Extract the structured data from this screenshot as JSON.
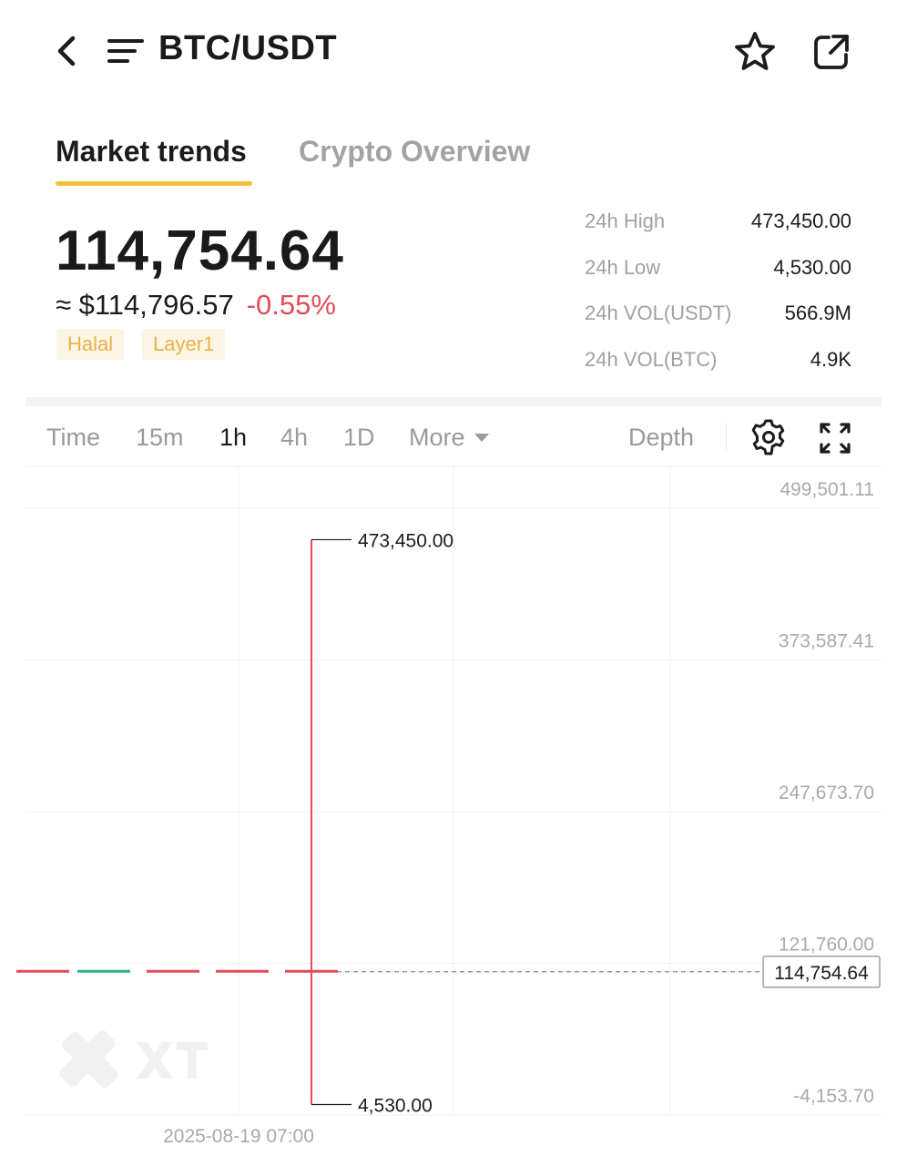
{
  "header": {
    "title": "BTC/USDT",
    "icons": {
      "back": "back-chevron-icon",
      "menu": "menu-lines-icon",
      "favorite": "star-icon",
      "share": "share-icon"
    }
  },
  "tabs": [
    {
      "label": "Market trends",
      "active": true
    },
    {
      "label": "Crypto Overview",
      "active": false
    }
  ],
  "ticker": {
    "last_price": "114,754.64",
    "fiat_price": "≈ $114,796.57",
    "change_pct": "-0.55%",
    "tags": [
      "Halal",
      "Layer1"
    ]
  },
  "stats": [
    {
      "label": "24h High",
      "value": "473,450.00"
    },
    {
      "label": "24h Low",
      "value": "4,530.00"
    },
    {
      "label": "24h VOL(USDT)",
      "value": "566.9M"
    },
    {
      "label": "24h VOL(BTC)",
      "value": "4.9K"
    }
  ],
  "toolbar": {
    "timeframes": [
      {
        "label": "Time",
        "active": false
      },
      {
        "label": "15m",
        "active": false
      },
      {
        "label": "1h",
        "active": true
      },
      {
        "label": "4h",
        "active": false
      },
      {
        "label": "1D",
        "active": false
      }
    ],
    "more_label": "More",
    "depth_label": "Depth",
    "icons": {
      "settings": "gear-icon",
      "fullscreen": "fullscreen-icon"
    }
  },
  "colors": {
    "accent": "#f5bf35",
    "down": "#e04c58",
    "up": "#2bb38a",
    "tag_text": "#e8b34a",
    "tag_bg": "#fdf5e4"
  },
  "chart_data": {
    "type": "candlestick",
    "y_tick_labels": [
      "499,501.11",
      "373,587.41",
      "247,673.70",
      "121,760.00",
      "-4,153.70"
    ],
    "y_ticks": [
      499501.11,
      373587.41,
      247673.7,
      121760.0,
      -4153.7
    ],
    "current_price_label": "114,754.64",
    "current_price": 114754.64,
    "high_label": "473,450.00",
    "high": 473450.0,
    "low_label": "4,530.00",
    "low": 4530.0,
    "x_label": "2025-08-19 07:00",
    "candles": [
      {
        "open": 114900,
        "close": 114754.64,
        "high": 114900,
        "low": 114754.64,
        "direction": "down"
      },
      {
        "open": 114754.64,
        "close": 114900,
        "high": 114900,
        "low": 114754.64,
        "direction": "up"
      },
      {
        "open": 114900,
        "close": 114754.64,
        "high": 114900,
        "low": 114754.64,
        "direction": "down"
      },
      {
        "open": 114900,
        "close": 114754.64,
        "high": 114900,
        "low": 114754.64,
        "direction": "down"
      },
      {
        "open": 114900,
        "close": 114754.64,
        "high": 473450.0,
        "low": 4530.0,
        "direction": "down"
      }
    ],
    "grid": true,
    "watermark": "XT"
  }
}
